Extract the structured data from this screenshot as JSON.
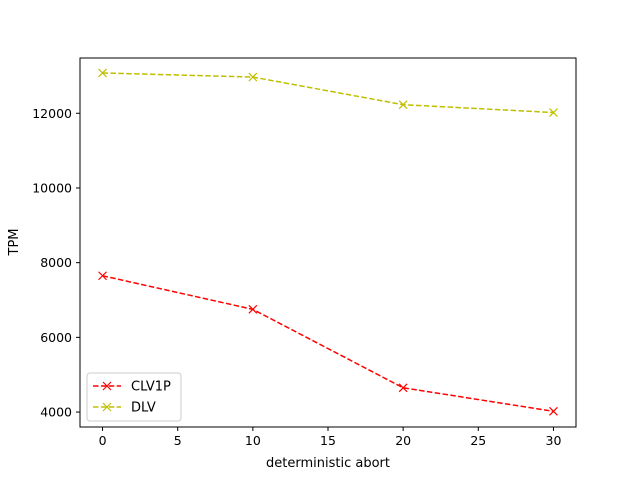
{
  "chart_data": {
    "type": "line",
    "title": "",
    "xlabel": "deterministic abort",
    "ylabel": "TPM",
    "x": [
      0,
      10,
      20,
      30
    ],
    "xlim": [
      -1.5,
      31.5
    ],
    "ylim": [
      3600,
      13480
    ],
    "xticks": [
      0,
      5,
      10,
      15,
      20,
      25,
      30
    ],
    "yticks": [
      4000,
      6000,
      8000,
      10000,
      12000
    ],
    "grid": false,
    "legend_position": "lower-left",
    "series": [
      {
        "name": "CLV1P",
        "values": [
          7650,
          6750,
          4650,
          4020
        ],
        "color": "#ff0000",
        "line_style": "dashed",
        "marker": "x"
      },
      {
        "name": "DLV",
        "values": [
          13080,
          12970,
          12230,
          12020
        ],
        "color": "#bfbf00",
        "line_style": "dashed",
        "marker": "x"
      }
    ]
  }
}
